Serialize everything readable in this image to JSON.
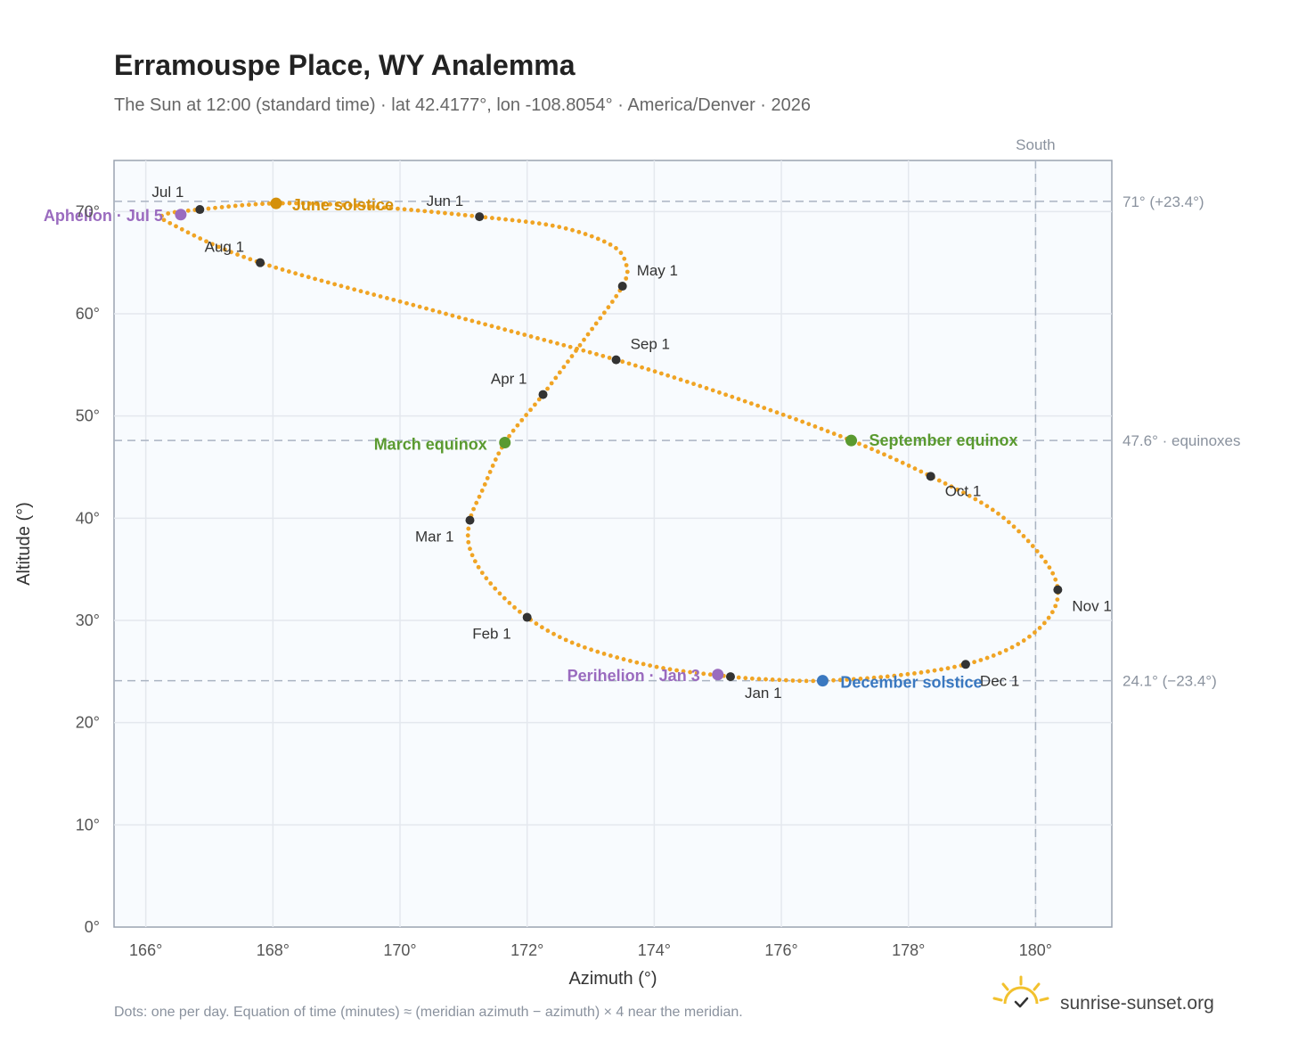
{
  "title": "Erramouspe Place, WY Analemma",
  "subtitle": "The Sun at 12:00 (standard time) · lat 42.4177°, lon -108.8054° · America/Denver · 2026",
  "footer_note": "Dots: one per day. Equation of time (minutes) ≈ (meridian azimuth − azimuth) × 4 near the meridian.",
  "brand": {
    "name": "sunrise-sunset.org",
    "logo_icon": "sun-logo-icon"
  },
  "colors": {
    "path": "#f0a424",
    "month_dot": "#333333",
    "solstice_june": "#d4900a",
    "solstice_december": "#3a78c0",
    "equinox": "#5a9a30",
    "apsis": "#9a6bbf",
    "grid": "#e4e8ee",
    "plot_bg": "#f8fbfe"
  },
  "chart_data": {
    "type": "scatter",
    "xlabel": "Azimuth (°)",
    "ylabel": "Altitude (°)",
    "xlim": [
      165.5,
      181.2
    ],
    "ylim": [
      0,
      75
    ],
    "xticks": [
      166,
      168,
      170,
      172,
      174,
      176,
      178,
      180
    ],
    "xtick_labels": [
      "166°",
      "168°",
      "170°",
      "172°",
      "174°",
      "176°",
      "178°",
      "180°"
    ],
    "yticks": [
      0,
      10,
      20,
      30,
      40,
      50,
      60,
      70
    ],
    "ytick_labels": [
      "0°",
      "10°",
      "20°",
      "30°",
      "40°",
      "50°",
      "60°",
      "70°"
    ],
    "grid": true,
    "meridian": {
      "azimuth": 180,
      "label": "South"
    },
    "reference_lines": [
      {
        "altitude": 71.0,
        "label": "71° (+23.4°)"
      },
      {
        "altitude": 47.6,
        "label": "47.6° · equinoxes"
      },
      {
        "altitude": 24.1,
        "label": "24.1° (−23.4°)"
      }
    ],
    "months": [
      {
        "label": "Jan 1",
        "az": 175.2,
        "alt": 24.5
      },
      {
        "label": "Feb 1",
        "az": 172.0,
        "alt": 30.3
      },
      {
        "label": "Mar 1",
        "az": 171.1,
        "alt": 39.8
      },
      {
        "label": "Apr 1",
        "az": 172.25,
        "alt": 52.1
      },
      {
        "label": "May 1",
        "az": 173.5,
        "alt": 62.7
      },
      {
        "label": "Jun 1",
        "az": 171.25,
        "alt": 69.5
      },
      {
        "label": "Jul 1",
        "az": 166.85,
        "alt": 70.2
      },
      {
        "label": "Aug 1",
        "az": 167.8,
        "alt": 65.0
      },
      {
        "label": "Sep 1",
        "az": 173.4,
        "alt": 55.5
      },
      {
        "label": "Oct 1",
        "az": 178.35,
        "alt": 44.1
      },
      {
        "label": "Nov 1",
        "az": 180.35,
        "alt": 33.0
      },
      {
        "label": "Dec 1",
        "az": 178.9,
        "alt": 25.7
      }
    ],
    "events": [
      {
        "label": "June solstice",
        "az": 168.05,
        "alt": 70.8,
        "kind": "solstice_june"
      },
      {
        "label": "December solstice",
        "az": 176.65,
        "alt": 24.1,
        "kind": "solstice_december"
      },
      {
        "label": "March equinox",
        "az": 171.65,
        "alt": 47.4,
        "kind": "equinox"
      },
      {
        "label": "September equinox",
        "az": 177.1,
        "alt": 47.6,
        "kind": "equinox"
      },
      {
        "label": "Aphelion · Jul 5",
        "az": 166.55,
        "alt": 69.7,
        "kind": "apsis"
      },
      {
        "label": "Perihelion · Jan 3",
        "az": 175.0,
        "alt": 24.7,
        "kind": "apsis"
      }
    ],
    "series": [
      {
        "points_per_day": true,
        "path": [
          [
            175.2,
            24.5
          ],
          [
            174.0,
            25.5
          ],
          [
            172.8,
            27.6
          ],
          [
            172.0,
            30.3
          ],
          [
            171.4,
            33.8
          ],
          [
            171.1,
            37.0
          ],
          [
            171.1,
            39.8
          ],
          [
            171.3,
            42.8
          ],
          [
            171.65,
            47.4
          ],
          [
            172.25,
            52.1
          ],
          [
            172.9,
            57.5
          ],
          [
            173.5,
            62.7
          ],
          [
            173.55,
            65.0
          ],
          [
            173.3,
            66.8
          ],
          [
            172.5,
            68.5
          ],
          [
            171.25,
            69.5
          ],
          [
            169.5,
            70.5
          ],
          [
            168.05,
            70.8
          ],
          [
            166.85,
            70.2
          ],
          [
            166.3,
            69.7
          ],
          [
            166.4,
            68.8
          ],
          [
            167.8,
            65.0
          ],
          [
            170.6,
            60.2
          ],
          [
            173.4,
            55.5
          ],
          [
            175.4,
            51.5
          ],
          [
            177.1,
            47.6
          ],
          [
            178.35,
            44.1
          ],
          [
            179.4,
            40.5
          ],
          [
            180.1,
            36.2
          ],
          [
            180.35,
            33.0
          ],
          [
            180.2,
            30.2
          ],
          [
            179.7,
            27.6
          ],
          [
            178.9,
            25.7
          ],
          [
            177.8,
            24.6
          ],
          [
            176.65,
            24.1
          ],
          [
            175.9,
            24.2
          ],
          [
            175.2,
            24.5
          ]
        ]
      }
    ]
  }
}
